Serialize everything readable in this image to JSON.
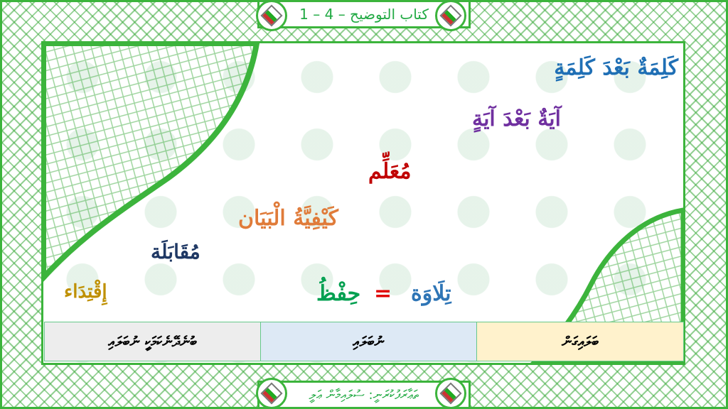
{
  "title": "كتاب التوضيح – 4 – 1",
  "footer": "ތަޢާރަފުކުރަނީ: ސުލައިމާން ޢަލީ",
  "words": {
    "kalima": "كَلِمَةٌ بَعْدَ كَلِمَةٍ",
    "aya": "آيَةٌ بَعْدَ آيَةٍ",
    "muallim": "مُعَلِّم",
    "kayfiyya": "كَيْفِيَّةُ الْبَيَان",
    "muqabala": "مُقَابَلَة",
    "iqtida": "إِقْتِدَاء",
    "tilawa": "تِلَاوَة",
    "equals": "=",
    "hifz": "حِفْظُ"
  },
  "table": [
    "ބުނެދޭނެކަމަކީ ނުބަލައި",
    "ނުބަލައި",
    "ބަލައިގަން"
  ],
  "colors": {
    "frame": "#3cb43c",
    "kalima": "#1f6fb5",
    "aya": "#7030a0",
    "muallim": "#c00000",
    "kayfiyya": "#e07b39",
    "muqabala": "#1f3864",
    "iqtida": "#bf9000",
    "tilawa": "#2e75b6",
    "hifz": "#00a050"
  }
}
